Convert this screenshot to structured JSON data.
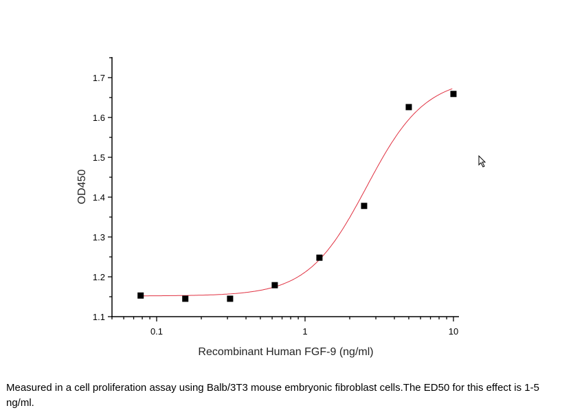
{
  "chart_data": {
    "type": "scatter",
    "xlabel": "Recombinant Human FGF-9 (ng/ml)",
    "ylabel": "OD450",
    "x_scale": "log",
    "xlim": [
      0.05,
      11
    ],
    "ylim": [
      1.1,
      1.75
    ],
    "x_ticks": [
      {
        "value": 0.1,
        "label": "0.1"
      },
      {
        "value": 1,
        "label": "1"
      },
      {
        "value": 10,
        "label": "10"
      }
    ],
    "y_ticks": [
      {
        "value": 1.1,
        "label": "1.1"
      },
      {
        "value": 1.2,
        "label": "1.2"
      },
      {
        "value": 1.3,
        "label": "1.3"
      },
      {
        "value": 1.4,
        "label": "1.4"
      },
      {
        "value": 1.5,
        "label": "1.5"
      },
      {
        "value": 1.6,
        "label": "1.6"
      },
      {
        "value": 1.7,
        "label": "1.7"
      }
    ],
    "grid": false,
    "points": {
      "x": [
        0.078,
        0.156,
        0.3125,
        0.625,
        1.25,
        2.5,
        5,
        10
      ],
      "y": [
        1.153,
        1.145,
        1.145,
        1.179,
        1.248,
        1.378,
        1.626,
        1.659
      ],
      "marker": "square",
      "color": "#000000"
    },
    "fit": {
      "model": "4PL",
      "bottom": 1.152,
      "top": 1.7,
      "ec50": 2.6,
      "hill": 2.2,
      "color": "#e03040"
    }
  },
  "caption": "Measured in a cell proliferation assay using Balb/3T3 mouse embryonic fibroblast cells.The ED50 for this effect is 1-5 ng/ml.",
  "cursor_icon": "mouse-pointer-icon"
}
